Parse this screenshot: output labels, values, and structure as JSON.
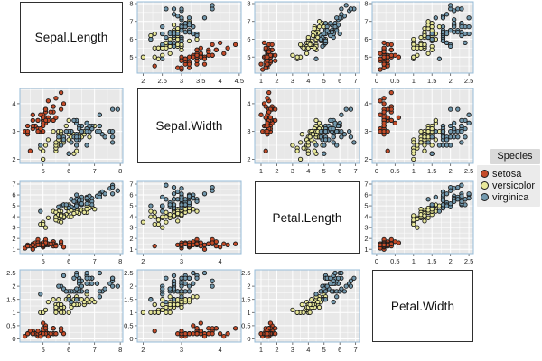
{
  "chart_data": {
    "type": "scatter_matrix",
    "title": "",
    "columns": [
      "Sepal.Length",
      "Sepal.Width",
      "Petal.Length",
      "Petal.Width"
    ],
    "variables": [
      {
        "label": "Sepal.Length",
        "ticks": [
          5,
          6,
          7,
          8
        ],
        "domain": [
          4.1,
          8.1
        ]
      },
      {
        "label": "Sepal.Width",
        "ticks": [
          2,
          3,
          4
        ],
        "ticks_row1": [
          2,
          2.5,
          3,
          3.5,
          4,
          4.5
        ],
        "domain": [
          1.85,
          4.55
        ]
      },
      {
        "label": "Petal.Length",
        "ticks": [
          1,
          2,
          3,
          4,
          5,
          6,
          7
        ],
        "domain": [
          0.6,
          7.25
        ]
      },
      {
        "label": "Petal.Width",
        "ticks": [
          0,
          0.5,
          1,
          1.5,
          2,
          2.5
        ],
        "domain": [
          -0.12,
          2.62
        ]
      }
    ],
    "legend": {
      "title": "Species",
      "position": "right",
      "entries": [
        "setosa",
        "versicolor",
        "virginica"
      ]
    },
    "style": {
      "panel_bg": "#e8e8e8",
      "grid_color": "#ffffff",
      "panel_border": "#97bcd9",
      "tick_color": "#555555",
      "marker_outline": "#1c1c1c",
      "diag_bg": "#ffffff",
      "diag_border": "#2f2f2f",
      "legend_title_bg": "#d9d9d9",
      "legend_bg": "#ebebeb"
    },
    "series": [
      {
        "name": "setosa",
        "color": "#c44b28",
        "points": [
          [
            5.1,
            3.5,
            1.4,
            0.2
          ],
          [
            4.9,
            3.0,
            1.4,
            0.2
          ],
          [
            4.7,
            3.2,
            1.3,
            0.2
          ],
          [
            4.6,
            3.1,
            1.5,
            0.2
          ],
          [
            5.0,
            3.6,
            1.4,
            0.2
          ],
          [
            5.4,
            3.9,
            1.7,
            0.4
          ],
          [
            4.6,
            3.4,
            1.4,
            0.3
          ],
          [
            5.0,
            3.4,
            1.5,
            0.2
          ],
          [
            4.4,
            2.9,
            1.4,
            0.2
          ],
          [
            4.9,
            3.1,
            1.5,
            0.1
          ],
          [
            5.4,
            3.7,
            1.5,
            0.2
          ],
          [
            4.8,
            3.4,
            1.6,
            0.2
          ],
          [
            4.8,
            3.0,
            1.4,
            0.1
          ],
          [
            4.3,
            3.0,
            1.1,
            0.1
          ],
          [
            5.8,
            4.0,
            1.2,
            0.2
          ],
          [
            5.7,
            4.4,
            1.5,
            0.4
          ],
          [
            5.4,
            3.9,
            1.3,
            0.4
          ],
          [
            5.1,
            3.5,
            1.4,
            0.3
          ],
          [
            5.7,
            3.8,
            1.7,
            0.3
          ],
          [
            5.1,
            3.8,
            1.5,
            0.3
          ],
          [
            5.4,
            3.4,
            1.7,
            0.2
          ],
          [
            5.1,
            3.7,
            1.5,
            0.4
          ],
          [
            4.6,
            3.6,
            1.0,
            0.2
          ],
          [
            5.1,
            3.3,
            1.7,
            0.5
          ],
          [
            4.8,
            3.4,
            1.9,
            0.2
          ],
          [
            5.0,
            3.0,
            1.6,
            0.2
          ],
          [
            5.0,
            3.4,
            1.6,
            0.4
          ],
          [
            5.2,
            3.5,
            1.5,
            0.2
          ],
          [
            5.2,
            3.4,
            1.4,
            0.2
          ],
          [
            4.7,
            3.2,
            1.6,
            0.2
          ],
          [
            4.8,
            3.1,
            1.6,
            0.2
          ],
          [
            5.4,
            3.4,
            1.5,
            0.4
          ],
          [
            5.2,
            4.1,
            1.5,
            0.1
          ],
          [
            5.5,
            4.2,
            1.4,
            0.2
          ],
          [
            4.9,
            3.1,
            1.5,
            0.2
          ],
          [
            5.0,
            3.2,
            1.2,
            0.2
          ],
          [
            5.5,
            3.5,
            1.3,
            0.2
          ],
          [
            4.9,
            3.6,
            1.4,
            0.1
          ],
          [
            4.4,
            3.0,
            1.3,
            0.2
          ],
          [
            5.1,
            3.4,
            1.5,
            0.2
          ],
          [
            5.0,
            3.5,
            1.3,
            0.3
          ],
          [
            4.5,
            2.3,
            1.3,
            0.3
          ],
          [
            4.4,
            3.2,
            1.3,
            0.2
          ],
          [
            5.0,
            3.5,
            1.6,
            0.6
          ],
          [
            5.1,
            3.8,
            1.9,
            0.4
          ],
          [
            4.8,
            3.0,
            1.4,
            0.3
          ],
          [
            5.1,
            3.8,
            1.6,
            0.2
          ],
          [
            4.6,
            3.2,
            1.4,
            0.2
          ],
          [
            5.3,
            3.7,
            1.5,
            0.2
          ],
          [
            5.0,
            3.3,
            1.4,
            0.2
          ]
        ]
      },
      {
        "name": "versicolor",
        "color": "#e8e89a",
        "points": [
          [
            7.0,
            3.2,
            4.7,
            1.4
          ],
          [
            6.4,
            3.2,
            4.5,
            1.5
          ],
          [
            6.9,
            3.1,
            4.9,
            1.5
          ],
          [
            5.5,
            2.3,
            4.0,
            1.3
          ],
          [
            6.5,
            2.8,
            4.6,
            1.5
          ],
          [
            5.7,
            2.8,
            4.5,
            1.3
          ],
          [
            6.3,
            3.3,
            4.7,
            1.6
          ],
          [
            4.9,
            2.4,
            3.3,
            1.0
          ],
          [
            6.6,
            2.9,
            4.6,
            1.3
          ],
          [
            5.2,
            2.7,
            3.9,
            1.4
          ],
          [
            5.0,
            2.0,
            3.5,
            1.0
          ],
          [
            5.9,
            3.0,
            4.2,
            1.5
          ],
          [
            6.0,
            2.2,
            4.0,
            1.0
          ],
          [
            6.1,
            2.9,
            4.7,
            1.4
          ],
          [
            5.6,
            2.9,
            3.6,
            1.3
          ],
          [
            6.7,
            3.1,
            4.4,
            1.4
          ],
          [
            5.6,
            3.0,
            4.5,
            1.5
          ],
          [
            5.8,
            2.7,
            4.1,
            1.0
          ],
          [
            6.2,
            2.2,
            4.5,
            1.5
          ],
          [
            5.6,
            2.5,
            3.9,
            1.1
          ],
          [
            5.9,
            3.2,
            4.8,
            1.8
          ],
          [
            6.1,
            2.8,
            4.0,
            1.3
          ],
          [
            6.3,
            2.5,
            4.9,
            1.5
          ],
          [
            6.1,
            2.8,
            4.7,
            1.2
          ],
          [
            6.4,
            2.9,
            4.3,
            1.3
          ],
          [
            6.6,
            3.0,
            4.4,
            1.4
          ],
          [
            6.8,
            2.8,
            4.8,
            1.4
          ],
          [
            6.7,
            3.0,
            5.0,
            1.7
          ],
          [
            6.0,
            2.9,
            4.5,
            1.5
          ],
          [
            5.7,
            2.6,
            3.5,
            1.0
          ],
          [
            5.5,
            2.4,
            3.8,
            1.1
          ],
          [
            5.5,
            2.4,
            3.7,
            1.0
          ],
          [
            5.8,
            2.7,
            3.9,
            1.2
          ],
          [
            6.0,
            2.7,
            5.1,
            1.6
          ],
          [
            5.4,
            3.0,
            4.5,
            1.5
          ],
          [
            6.0,
            3.4,
            4.5,
            1.6
          ],
          [
            6.7,
            3.1,
            4.7,
            1.5
          ],
          [
            6.3,
            2.3,
            4.4,
            1.3
          ],
          [
            5.6,
            3.0,
            4.1,
            1.3
          ],
          [
            5.5,
            2.5,
            4.0,
            1.3
          ],
          [
            5.5,
            2.6,
            4.4,
            1.2
          ],
          [
            6.1,
            3.0,
            4.6,
            1.4
          ],
          [
            5.8,
            2.6,
            4.0,
            1.2
          ],
          [
            5.0,
            2.3,
            3.3,
            1.0
          ],
          [
            5.6,
            2.7,
            4.2,
            1.3
          ],
          [
            5.7,
            3.0,
            4.2,
            1.2
          ],
          [
            5.7,
            2.9,
            4.2,
            1.3
          ],
          [
            6.2,
            2.9,
            4.3,
            1.3
          ],
          [
            5.1,
            2.5,
            3.0,
            1.1
          ],
          [
            5.7,
            2.8,
            4.1,
            1.3
          ]
        ]
      },
      {
        "name": "virginica",
        "color": "#7298ad",
        "points": [
          [
            6.3,
            3.3,
            6.0,
            2.5
          ],
          [
            5.8,
            2.7,
            5.1,
            1.9
          ],
          [
            7.1,
            3.0,
            5.9,
            2.1
          ],
          [
            6.3,
            2.9,
            5.6,
            1.8
          ],
          [
            6.5,
            3.0,
            5.8,
            2.2
          ],
          [
            7.6,
            3.0,
            6.6,
            2.1
          ],
          [
            4.9,
            2.5,
            4.5,
            1.7
          ],
          [
            7.3,
            2.9,
            6.3,
            1.8
          ],
          [
            6.7,
            2.5,
            5.8,
            1.8
          ],
          [
            7.2,
            3.6,
            6.1,
            2.5
          ],
          [
            6.5,
            3.2,
            5.1,
            2.0
          ],
          [
            6.4,
            2.7,
            5.3,
            1.9
          ],
          [
            6.8,
            3.0,
            5.5,
            2.1
          ],
          [
            5.7,
            2.5,
            5.0,
            2.0
          ],
          [
            5.8,
            2.8,
            5.1,
            2.4
          ],
          [
            6.4,
            3.2,
            5.3,
            2.3
          ],
          [
            6.5,
            3.0,
            5.5,
            1.8
          ],
          [
            7.7,
            3.8,
            6.7,
            2.2
          ],
          [
            7.7,
            2.6,
            6.9,
            2.3
          ],
          [
            6.0,
            2.2,
            5.0,
            1.5
          ],
          [
            6.9,
            3.2,
            5.7,
            2.3
          ],
          [
            5.6,
            2.8,
            4.9,
            2.0
          ],
          [
            7.7,
            2.8,
            6.7,
            2.0
          ],
          [
            6.3,
            2.7,
            4.9,
            1.8
          ],
          [
            6.7,
            3.3,
            5.7,
            2.1
          ],
          [
            7.2,
            3.2,
            6.0,
            1.8
          ],
          [
            6.2,
            2.8,
            4.8,
            1.8
          ],
          [
            6.1,
            3.0,
            4.9,
            1.8
          ],
          [
            6.4,
            2.8,
            5.6,
            2.1
          ],
          [
            7.2,
            3.0,
            5.8,
            1.6
          ],
          [
            7.4,
            2.8,
            6.1,
            1.9
          ],
          [
            7.9,
            3.8,
            6.4,
            2.0
          ],
          [
            6.4,
            2.8,
            5.6,
            2.2
          ],
          [
            6.3,
            2.8,
            5.1,
            1.5
          ],
          [
            6.1,
            2.6,
            5.6,
            1.4
          ],
          [
            7.7,
            3.0,
            6.1,
            2.3
          ],
          [
            6.3,
            3.4,
            5.6,
            2.4
          ],
          [
            6.4,
            3.1,
            5.5,
            1.8
          ],
          [
            6.0,
            3.0,
            4.8,
            1.8
          ],
          [
            6.9,
            3.1,
            5.4,
            2.1
          ],
          [
            6.7,
            3.1,
            5.6,
            2.4
          ],
          [
            6.9,
            3.1,
            5.1,
            2.3
          ],
          [
            5.8,
            2.7,
            5.1,
            1.9
          ],
          [
            6.8,
            3.2,
            5.9,
            2.3
          ],
          [
            6.7,
            3.3,
            5.7,
            2.5
          ],
          [
            6.7,
            3.0,
            5.2,
            2.3
          ],
          [
            6.3,
            2.5,
            5.0,
            1.9
          ],
          [
            6.5,
            3.0,
            5.2,
            2.0
          ],
          [
            6.2,
            3.4,
            5.4,
            2.3
          ],
          [
            5.9,
            3.0,
            5.1,
            1.8
          ]
        ]
      }
    ]
  }
}
